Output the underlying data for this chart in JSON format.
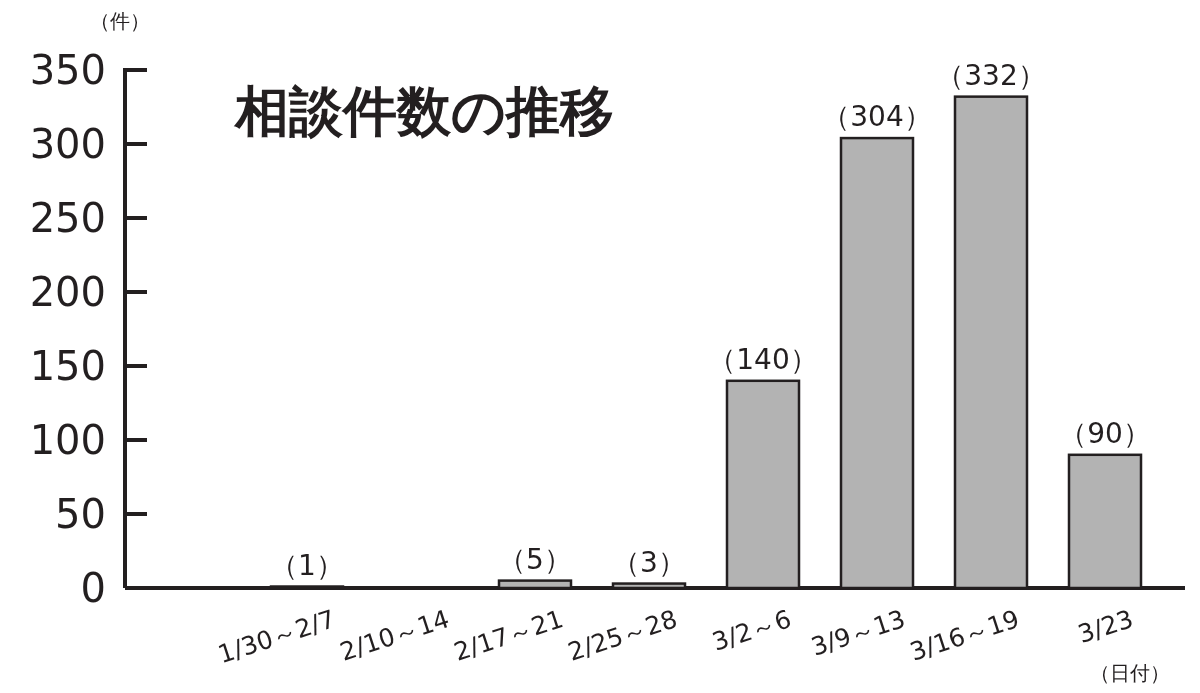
{
  "chart_data": {
    "type": "bar",
    "title": "相談件数の推移",
    "ylabel": "（件）",
    "xlabel": "（日付）",
    "categories": [
      "1/30～2/7",
      "2/10～14",
      "2/17～21",
      "2/25～28",
      "3/2～6",
      "3/9～13",
      "3/16～19",
      "3/23"
    ],
    "values": [
      1,
      0,
      5,
      3,
      140,
      304,
      332,
      90
    ],
    "value_labels": [
      "（1）",
      null,
      "（5）",
      "（3）",
      "（140）",
      "（304）",
      "（332）",
      "（90）"
    ],
    "color": "#b3b3b3",
    "ylim": [
      0,
      350
    ],
    "yticks": [
      0,
      50,
      100,
      150,
      200,
      250,
      300,
      350
    ],
    "grid": false
  }
}
